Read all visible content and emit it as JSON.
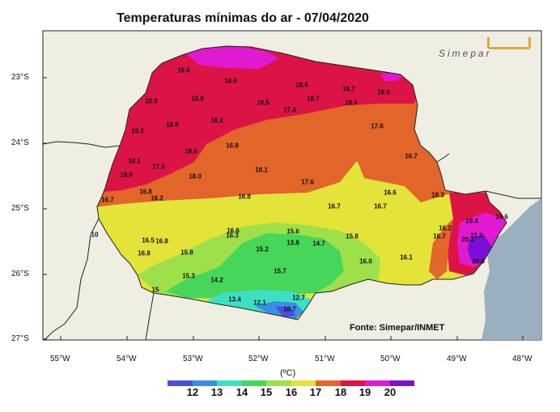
{
  "title": "Temperaturas mínimas do ar - 07/04/2020",
  "logo_text": "Simepar",
  "source": "Fonte: Simepar/INMET",
  "unit": "(ºC)",
  "lat_labels": [
    "23°S",
    "24°S",
    "25°S",
    "26°S",
    "27°S"
  ],
  "lon_labels": [
    "55°W",
    "54°W",
    "53°W",
    "52°W",
    "51°W",
    "50°W",
    "49°W",
    "48°W"
  ],
  "colors": {
    "land_background": "#efeee2",
    "ocean": "#9aafc0",
    "c12": "#4b4fe0",
    "c13": "#3a8fe2",
    "c14": "#3ee0c4",
    "c15": "#46d65a",
    "c16": "#9ee04a",
    "c17": "#e3e33a",
    "c18": "#e2652a",
    "c19": "#dc1446",
    "c20": "#e01ad0",
    "c21": "#7a10d8"
  },
  "colorbar_colors": [
    "#4b4fe0",
    "#3a8fe2",
    "#3ee0c4",
    "#46d65a",
    "#9ee04a",
    "#e3e33a",
    "#e2652a",
    "#dc1446",
    "#e01ad0",
    "#7a10d8"
  ],
  "colorbar_labels": [
    "12",
    "13",
    "14",
    "15",
    "16",
    "17",
    "18",
    "19",
    "20"
  ],
  "stations": [
    {
      "v": "18.6"
    },
    {
      "v": "18.6"
    },
    {
      "v": "18.6"
    },
    {
      "v": "18.7"
    },
    {
      "v": "18.0"
    },
    {
      "v": "18.9"
    },
    {
      "v": "18.8"
    },
    {
      "v": "18.5"
    },
    {
      "v": "18.7"
    },
    {
      "v": "18.4"
    },
    {
      "v": "17.4"
    },
    {
      "v": "18.6"
    },
    {
      "v": "18.2"
    },
    {
      "v": "17.6"
    },
    {
      "v": "19.2"
    },
    {
      "v": "16.8"
    },
    {
      "v": "18.6"
    },
    {
      "v": "16.7"
    },
    {
      "v": "18.1"
    },
    {
      "v": "17.5"
    },
    {
      "v": "18.1"
    },
    {
      "v": "19.0"
    },
    {
      "v": "18.0"
    },
    {
      "v": "17.6"
    },
    {
      "v": "16.8"
    },
    {
      "v": "16.6"
    },
    {
      "v": "18.3"
    },
    {
      "v": "16.7"
    },
    {
      "v": "16.2"
    },
    {
      "v": "16.8"
    },
    {
      "v": "16.7"
    },
    {
      "v": "16.7"
    },
    {
      "v": "19.4"
    },
    {
      "v": "19.6"
    },
    {
      "v": "16.2"
    },
    {
      "v": "16.6"
    },
    {
      "v": "16.3"
    },
    {
      "v": "15.6"
    },
    {
      "v": "16.7"
    },
    {
      "v": "21.0"
    },
    {
      "v": "20.3"
    },
    {
      "v": "16.5"
    },
    {
      "v": "16.8"
    },
    {
      "v": "13.8"
    },
    {
      "v": "14.7"
    },
    {
      "v": "15.8"
    },
    {
      "v": "16.8"
    },
    {
      "v": "15.8"
    },
    {
      "v": "15.2"
    },
    {
      "v": "16.0"
    },
    {
      "v": "16.1"
    },
    {
      "v": "20.6"
    },
    {
      "v": "15.3"
    },
    {
      "v": "14.2"
    },
    {
      "v": "15.7"
    },
    {
      "v": "15"
    },
    {
      "v": "13.4"
    },
    {
      "v": "12.1"
    },
    {
      "v": "12.7"
    },
    {
      "v": "10.7"
    },
    {
      "v": "10"
    }
  ]
}
